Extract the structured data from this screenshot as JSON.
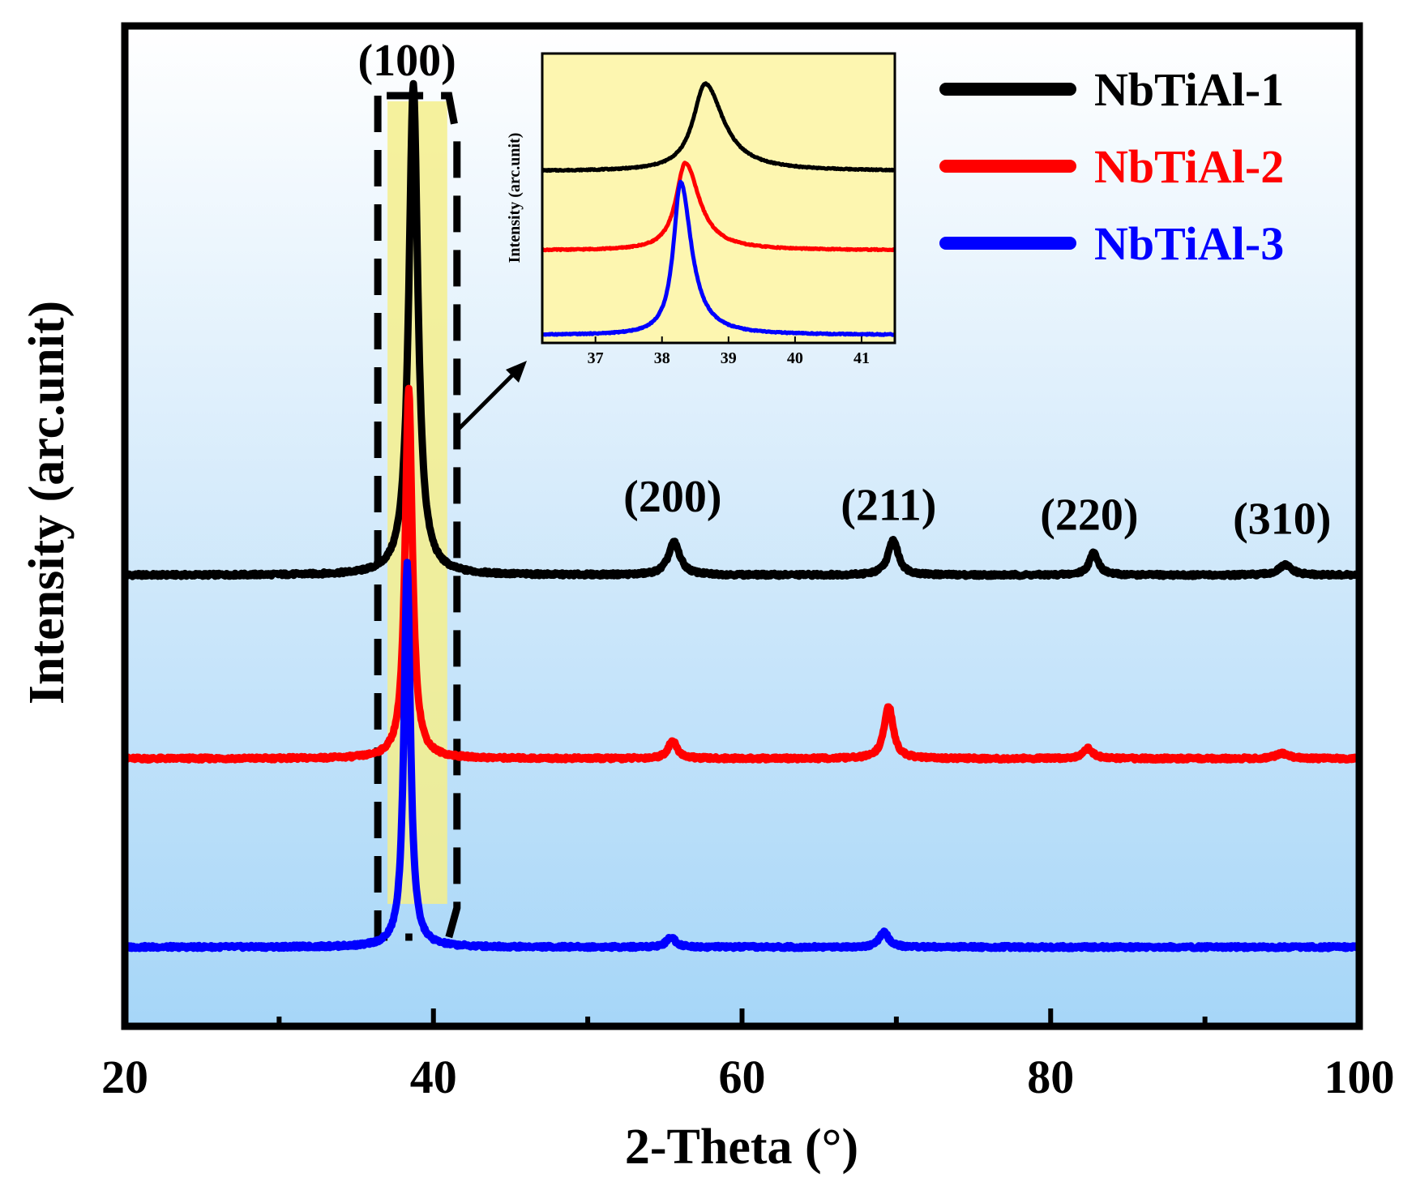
{
  "chart_data": {
    "type": "line",
    "title": "",
    "xlabel": "2-Theta (°)",
    "ylabel": "Intensity (arc.unit)",
    "xlim": [
      20,
      100
    ],
    "xticks": [
      20,
      40,
      60,
      80,
      100
    ],
    "xtick_labels": [
      "20",
      "40",
      "60",
      "80",
      "100"
    ],
    "y_ticks_shown": false,
    "background": "vertical gradient white to light blue",
    "legend": {
      "position": "top-right",
      "entries": [
        {
          "label": "NbTiAl-1",
          "color": "#000000"
        },
        {
          "label": "NbTiAl-2",
          "color": "#ff0000"
        },
        {
          "label": "NbTiAl-3",
          "color": "#0000ff"
        }
      ]
    },
    "peak_annotations": [
      {
        "label": "(100)",
        "x": 38.5
      },
      {
        "label": "(200)",
        "x": 55.5
      },
      {
        "label": "(211)",
        "x": 69.5
      },
      {
        "label": "(220)",
        "x": 82.5
      },
      {
        "label": "(310)",
        "x": 95
      }
    ],
    "series": [
      {
        "name": "NbTiAl-1",
        "color": "#000000",
        "baseline": 1.55,
        "peaks": [
          {
            "x": 38.7,
            "height": 1.95,
            "width": 0.35
          },
          {
            "x": 55.6,
            "height": 0.13,
            "width": 0.45
          },
          {
            "x": 69.8,
            "height": 0.14,
            "width": 0.4
          },
          {
            "x": 82.8,
            "height": 0.09,
            "width": 0.35
          },
          {
            "x": 95.2,
            "height": 0.04,
            "width": 0.5
          }
        ]
      },
      {
        "name": "NbTiAl-2",
        "color": "#ff0000",
        "baseline": 0.82,
        "peaks": [
          {
            "x": 38.4,
            "height": 1.47,
            "width": 0.28
          },
          {
            "x": 55.5,
            "height": 0.07,
            "width": 0.35
          },
          {
            "x": 69.5,
            "height": 0.21,
            "width": 0.35
          },
          {
            "x": 82.4,
            "height": 0.04,
            "width": 0.4
          },
          {
            "x": 95.0,
            "height": 0.02,
            "width": 0.5
          }
        ]
      },
      {
        "name": "NbTiAl-3",
        "color": "#0000ff",
        "baseline": 0.07,
        "peaks": [
          {
            "x": 38.3,
            "height": 1.53,
            "width": 0.25
          },
          {
            "x": 55.4,
            "height": 0.04,
            "width": 0.35
          },
          {
            "x": 69.2,
            "height": 0.06,
            "width": 0.35
          }
        ]
      }
    ],
    "highlight_region": {
      "x": [
        36.5,
        41
      ],
      "color": "#f5ef8c",
      "dashed_box": true
    },
    "inset": {
      "ylabel": "Intensity (arc.unit)",
      "xlim": [
        36.2,
        41.5
      ],
      "xticks": [
        37,
        38,
        39,
        40,
        41
      ],
      "xtick_labels": [
        "37",
        "38",
        "39",
        "40",
        "41"
      ],
      "background": "#fdf6b0",
      "series": [
        {
          "name": "NbTiAl-1",
          "color": "#000000",
          "baseline": 0.62,
          "peak_x": 38.65,
          "peak_height": 0.32,
          "width": 0.22
        },
        {
          "name": "NbTiAl-2",
          "color": "#ff0000",
          "baseline": 0.33,
          "peak_x": 38.35,
          "peak_height": 0.32,
          "width": 0.17
        },
        {
          "name": "NbTiAl-3",
          "color": "#0000ff",
          "baseline": 0.02,
          "peak_x": 38.28,
          "peak_height": 0.56,
          "width": 0.13
        }
      ]
    }
  }
}
